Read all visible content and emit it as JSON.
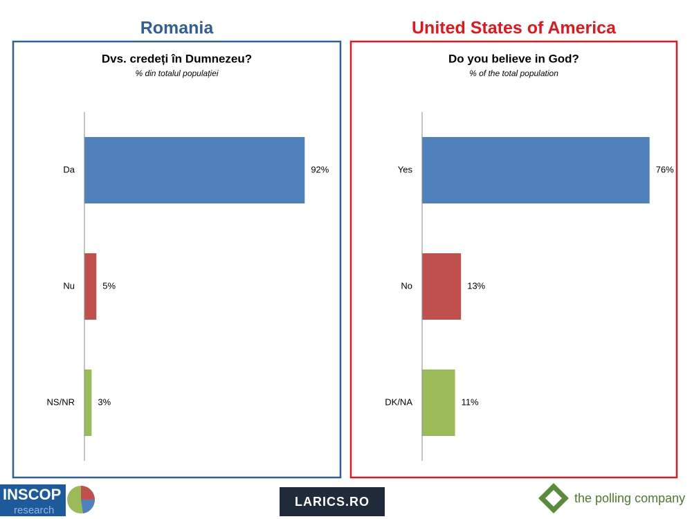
{
  "chart_data": [
    {
      "type": "bar",
      "orientation": "horizontal",
      "heading": "Romania",
      "heading_color": "#2f5f96",
      "title": "Dvs. credeți în Dumnezeu?",
      "subtitle": "% din totalul populației",
      "categories": [
        "Da",
        "Nu",
        "NS/NR"
      ],
      "values": [
        92,
        5,
        3
      ],
      "value_labels": [
        "92%",
        "5%",
        "3%"
      ],
      "colors": [
        "#4f81bd",
        "#c0504d",
        "#9bbb59"
      ],
      "xlim": [
        0,
        100
      ]
    },
    {
      "type": "bar",
      "orientation": "horizontal",
      "heading": "United States of America",
      "heading_color": "#e3171b",
      "title": "Do you believe in God?",
      "subtitle": "% of the total population",
      "categories": [
        "Yes",
        "No",
        "DK/NA"
      ],
      "values": [
        76,
        13,
        11
      ],
      "value_labels": [
        "76%",
        "13%",
        "11%"
      ],
      "colors": [
        "#4f81bd",
        "#c0504d",
        "#9bbb59"
      ],
      "xlim": [
        0,
        80
      ]
    }
  ],
  "footer": {
    "logos": [
      "INSCOP",
      "research",
      "LARICS.RO",
      "the polling company"
    ]
  }
}
